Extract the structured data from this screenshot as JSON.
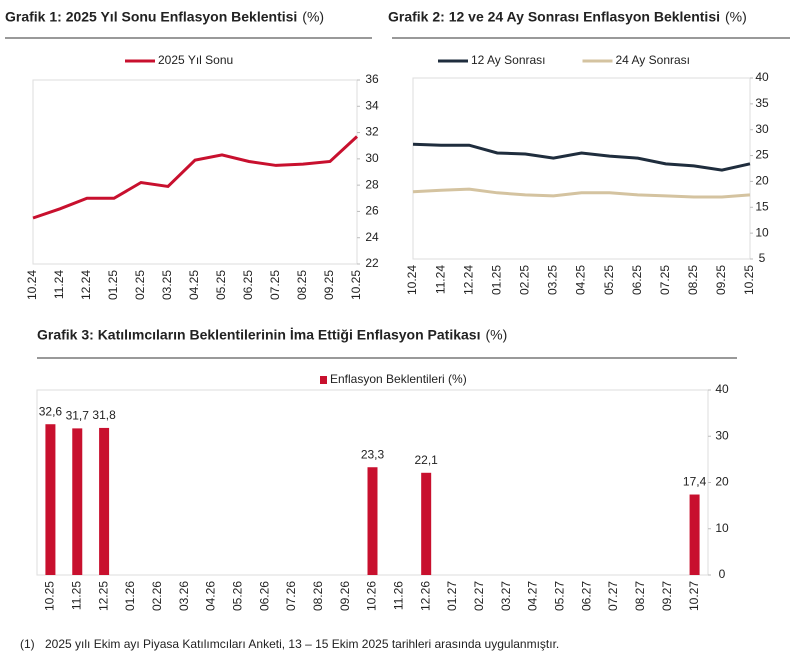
{
  "chart_data": [
    {
      "type": "line",
      "title": "Grafik 1: 2025 Yıl Sonu Enflasyon Beklentisi",
      "title_suffix": "(%)",
      "categories": [
        "10.24",
        "11.24",
        "12.24",
        "01.25",
        "02.25",
        "03.25",
        "04.25",
        "05.25",
        "06.25",
        "07.25",
        "08.25",
        "09.25",
        "10.25"
      ],
      "series": [
        {
          "name": "2025 Yıl Sonu",
          "color": "#c8102e",
          "values": [
            25.5,
            26.2,
            27.0,
            27.0,
            28.2,
            27.9,
            29.9,
            30.3,
            29.8,
            29.5,
            29.6,
            29.8,
            31.7
          ]
        }
      ],
      "ylim": [
        22,
        36
      ],
      "yticks": [
        22,
        24,
        26,
        28,
        30,
        32,
        34,
        36
      ],
      "grid": false,
      "legend": "top"
    },
    {
      "type": "line",
      "title": "Grafik 2: 12 ve 24 Ay Sonrası Enflasyon Beklentisi",
      "title_suffix": "(%)",
      "categories": [
        "10.24",
        "11.24",
        "12.24",
        "01.25",
        "02.25",
        "03.25",
        "04.25",
        "05.25",
        "06.25",
        "07.25",
        "08.25",
        "09.25",
        "10.25"
      ],
      "series": [
        {
          "name": "12 Ay Sonrası",
          "color": "#1f2d3d",
          "values": [
            27.2,
            27.0,
            27.0,
            25.5,
            25.3,
            24.5,
            25.5,
            24.9,
            24.5,
            23.4,
            23.0,
            22.2,
            23.4
          ]
        },
        {
          "name": "24 Ay Sonrası",
          "color": "#d4c3a0",
          "values": [
            18.0,
            18.3,
            18.5,
            17.8,
            17.4,
            17.2,
            17.8,
            17.8,
            17.4,
            17.2,
            17.0,
            17.0,
            17.4
          ]
        }
      ],
      "ylim": [
        5,
        40
      ],
      "yticks": [
        5,
        10,
        15,
        20,
        25,
        30,
        35,
        40
      ],
      "grid": false,
      "legend": "top"
    },
    {
      "type": "bar",
      "title": "Grafik 3: Katılımcıların Beklentilerinin İma Ettiği Enflasyon Patikası",
      "title_suffix": "(%)",
      "categories": [
        "10.25",
        "11.25",
        "12.25",
        "01.26",
        "02.26",
        "03.26",
        "04.26",
        "05.26",
        "06.26",
        "07.26",
        "08.26",
        "09.26",
        "10.26",
        "11.26",
        "12.26",
        "01.27",
        "02.27",
        "03.27",
        "04.27",
        "05.27",
        "06.27",
        "07.27",
        "08.27",
        "09.27",
        "10.27"
      ],
      "series": [
        {
          "name": "Enflasyon Beklentileri (%)",
          "color": "#c8102e",
          "values": [
            32.6,
            31.7,
            31.8,
            null,
            null,
            null,
            null,
            null,
            null,
            null,
            null,
            null,
            23.3,
            null,
            22.1,
            null,
            null,
            null,
            null,
            null,
            null,
            null,
            null,
            null,
            17.4
          ],
          "value_labels": [
            "32,6",
            "31,7",
            "31,8",
            null,
            null,
            null,
            null,
            null,
            null,
            null,
            null,
            null,
            "23,3",
            null,
            "22,1",
            null,
            null,
            null,
            null,
            null,
            null,
            null,
            null,
            null,
            "17,4"
          ]
        }
      ],
      "ylim": [
        0,
        40
      ],
      "yticks": [
        0,
        10,
        20,
        30,
        40
      ],
      "grid": false,
      "legend": "top"
    }
  ],
  "footnote": {
    "marker": "(1)",
    "text": "2025 yılı Ekim ayı Piyasa Katılımcıları Anketi, 13 – 15 Ekim 2025 tarihleri arasında uygulanmıştır."
  }
}
